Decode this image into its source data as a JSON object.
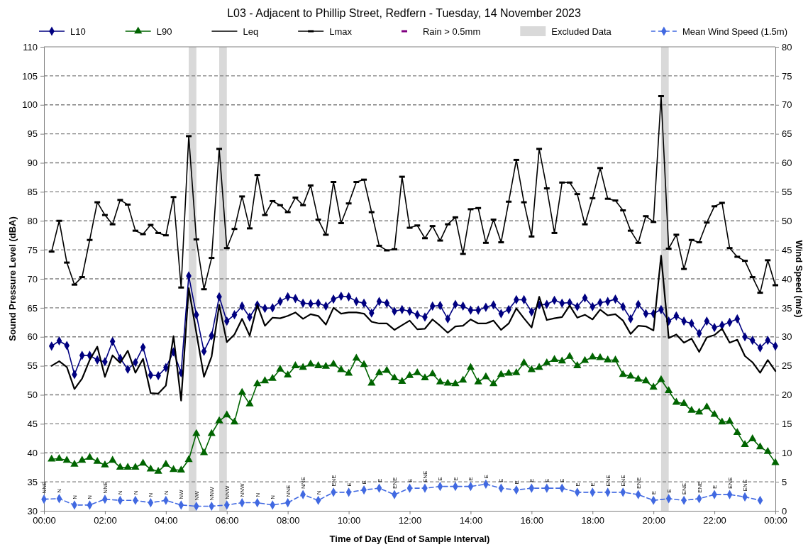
{
  "chart_data": {
    "type": "line",
    "title": "L03 - Adjacent to Phillip Street, Redfern - Tuesday, 14 November 2023",
    "xlabel": "Time of Day (End of Sample Interval)",
    "ylabel": "Sound Pressure Level (dBA)",
    "y2label": "Wind Speed (m/s)",
    "x": [
      0.25,
      0.5,
      0.75,
      1,
      1.25,
      1.5,
      1.75,
      2,
      2.25,
      2.5,
      2.75,
      3,
      3.25,
      3.5,
      3.75,
      4,
      4.25,
      4.5,
      4.75,
      5,
      5.25,
      5.5,
      5.75,
      6,
      6.25,
      6.5,
      6.75,
      7,
      7.25,
      7.5,
      7.75,
      8,
      8.25,
      8.5,
      8.75,
      9,
      9.25,
      9.5,
      9.75,
      10,
      10.25,
      10.5,
      10.75,
      11,
      11.25,
      11.5,
      11.75,
      12,
      12.25,
      12.5,
      12.75,
      13,
      13.25,
      13.5,
      13.75,
      14,
      14.25,
      14.5,
      14.75,
      15,
      15.25,
      15.5,
      15.75,
      16,
      16.25,
      16.5,
      16.75,
      17,
      17.25,
      17.5,
      17.75,
      18,
      18.25,
      18.5,
      18.75,
      19,
      19.25,
      19.5,
      19.75,
      20,
      20.25,
      20.5,
      20.75,
      21,
      21.25,
      21.5,
      21.75,
      22,
      22.25,
      22.5,
      22.75,
      23,
      23.25,
      23.5,
      23.75,
      24
    ],
    "xlim": [
      0,
      24
    ],
    "xticks": [
      {
        "value": 0,
        "label": "00:00"
      },
      {
        "value": 2,
        "label": "02:00"
      },
      {
        "value": 4,
        "label": "04:00"
      },
      {
        "value": 6,
        "label": "06:00"
      },
      {
        "value": 8,
        "label": "08:00"
      },
      {
        "value": 10,
        "label": "10:00"
      },
      {
        "value": 12,
        "label": "12:00"
      },
      {
        "value": 14,
        "label": "14:00"
      },
      {
        "value": 16,
        "label": "16:00"
      },
      {
        "value": 18,
        "label": "18:00"
      },
      {
        "value": 20,
        "label": "20:00"
      },
      {
        "value": 22,
        "label": "22:00"
      },
      {
        "value": 24,
        "label": "00:00"
      }
    ],
    "ylim": [
      30,
      110
    ],
    "yticks": [
      30,
      35,
      40,
      45,
      50,
      55,
      60,
      65,
      70,
      75,
      80,
      85,
      90,
      95,
      100,
      105,
      110
    ],
    "y2lim": [
      0,
      80
    ],
    "y2ticks": [
      0,
      5,
      10,
      15,
      20,
      25,
      30,
      35,
      40,
      45,
      50,
      55,
      60,
      65,
      70,
      75,
      80
    ],
    "grid": "y",
    "legend": "top",
    "series": [
      {
        "name": "L10",
        "color": "#000080",
        "marker": "diamond",
        "values": [
          58.4,
          59.3,
          58.5,
          53.5,
          56.8,
          56.8,
          56.0,
          55.7,
          59.2,
          56.3,
          54.4,
          55.6,
          58.2,
          53.4,
          53.3,
          54.7,
          57.4,
          53.8,
          70.5,
          63.8,
          57.5,
          60.2,
          66.9,
          62.7,
          63.8,
          65.3,
          63.4,
          65.5,
          64.9,
          65.0,
          66.1,
          66.9,
          66.6,
          65.8,
          65.7,
          65.8,
          65.3,
          66.5,
          67.0,
          66.9,
          66.1,
          65.8,
          64.1,
          66.1,
          65.8,
          64.4,
          64.7,
          64.4,
          63.8,
          63.4,
          65.3,
          65.4,
          63.1,
          65.6,
          65.3,
          64.6,
          64.6,
          65.1,
          65.5,
          64.0,
          64.7,
          66.4,
          66.4,
          64.3,
          65.5,
          65.6,
          66.3,
          65.8,
          65.9,
          65.2,
          66.7,
          65.2,
          65.9,
          66.1,
          66.5,
          65.2,
          63.1,
          65.6,
          64.0,
          64.0,
          64.7,
          62.7,
          63.6,
          62.7,
          62.3,
          60.6,
          62.7,
          61.6,
          62.0,
          62.5,
          63.1,
          60.0,
          59.4,
          58.1,
          59.4,
          58.4
        ]
      },
      {
        "name": "L90",
        "color": "#006400",
        "marker": "triangle",
        "values": [
          38.9,
          39.0,
          38.7,
          38.0,
          38.7,
          39.2,
          38.5,
          37.9,
          38.7,
          37.5,
          37.5,
          37.5,
          38.2,
          37.2,
          36.8,
          38.0,
          37.1,
          37.0,
          38.8,
          43.3,
          40.0,
          43.3,
          45.5,
          46.5,
          45.3,
          50.4,
          48.4,
          51.9,
          52.4,
          52.8,
          54.4,
          53.4,
          55.0,
          54.7,
          55.3,
          55.0,
          54.9,
          55.3,
          54.3,
          53.7,
          56.3,
          55.2,
          52.0,
          53.8,
          54.2,
          52.9,
          52.3,
          53.3,
          53.8,
          52.9,
          53.6,
          52.2,
          52.0,
          51.9,
          52.5,
          54.7,
          52.2,
          53.1,
          51.9,
          53.5,
          53.7,
          53.8,
          55.5,
          54.3,
          54.7,
          55.5,
          56.1,
          55.8,
          56.6,
          55.0,
          55.9,
          56.5,
          56.4,
          56.0,
          56.0,
          53.5,
          53.2,
          52.7,
          52.4,
          51.3,
          52.6,
          50.7,
          48.7,
          48.5,
          47.3,
          47.0,
          47.9,
          46.6,
          45.3,
          45.4,
          43.5,
          41.4,
          42.4,
          41.0,
          40.2,
          38.3
        ]
      },
      {
        "name": "Leq",
        "color": "#000000",
        "marker": "none",
        "values": [
          55.0,
          55.8,
          54.8,
          51.0,
          52.8,
          56.0,
          58.3,
          53.1,
          56.8,
          55.5,
          57.6,
          53.8,
          56.2,
          50.3,
          50.2,
          51.6,
          60.1,
          49.0,
          68.4,
          60.7,
          53.1,
          56.6,
          65.5,
          59.1,
          60.4,
          63.1,
          60.2,
          65.5,
          61.9,
          63.3,
          63.2,
          63.6,
          64.2,
          63.1,
          63.9,
          63.6,
          62.1,
          65.0,
          64.0,
          64.2,
          64.2,
          64.0,
          62.6,
          62.3,
          62.3,
          61.2,
          62.0,
          62.8,
          61.3,
          61.4,
          63.0,
          61.9,
          60.7,
          61.8,
          61.9,
          63.0,
          62.3,
          62.3,
          62.8,
          61.2,
          62.3,
          64.9,
          63.2,
          61.6,
          66.9,
          62.9,
          63.2,
          63.4,
          65.4,
          63.3,
          63.8,
          63.0,
          64.7,
          63.7,
          63.9,
          62.8,
          60.5,
          61.9,
          61.8,
          61.1,
          74.0,
          59.8,
          60.4,
          59.0,
          59.7,
          57.4,
          59.9,
          60.3,
          61.4,
          59.0,
          59.5,
          56.7,
          55.6,
          53.8,
          56.0,
          54.1
        ]
      },
      {
        "name": "Lmax",
        "color": "#000000",
        "marker": "square",
        "values": [
          74.7,
          80.0,
          72.8,
          69.0,
          70.3,
          76.7,
          83.2,
          81.0,
          79.4,
          83.6,
          82.8,
          78.3,
          77.7,
          79.3,
          77.9,
          77.5,
          84.1,
          68.5,
          94.6,
          76.8,
          68.2,
          73.6,
          92.4,
          75.3,
          78.6,
          84.2,
          78.7,
          87.9,
          81.0,
          83.4,
          82.7,
          81.5,
          84.0,
          82.7,
          86.1,
          80.2,
          77.6,
          86.7,
          79.6,
          83.0,
          86.7,
          87.1,
          81.5,
          75.7,
          74.9,
          75.1,
          87.6,
          78.8,
          79.2,
          77.0,
          79.1,
          76.6,
          79.4,
          80.6,
          74.3,
          82.0,
          82.2,
          76.2,
          80.2,
          76.3,
          83.3,
          90.5,
          83.2,
          77.3,
          92.4,
          85.6,
          77.9,
          86.6,
          86.6,
          84.6,
          79.4,
          83.9,
          89.1,
          83.8,
          83.5,
          81.8,
          78.3,
          76.2,
          80.8,
          79.8,
          101.5,
          75.2,
          77.6,
          71.7,
          76.7,
          76.3,
          79.7,
          82.5,
          83.1,
          75.3,
          73.8,
          73.1,
          70.3,
          67.6,
          73.2,
          68.9
        ]
      },
      {
        "name": "Rain > 0.5mm",
        "type": "scatter",
        "color": "#800080",
        "marker": "square",
        "values": [
          null,
          null,
          null,
          null,
          null,
          null,
          null,
          null,
          null,
          null,
          null,
          null,
          null,
          null,
          null,
          null,
          null,
          null,
          null,
          null,
          null,
          null,
          null,
          null,
          null,
          null,
          null,
          null,
          null,
          null,
          null,
          null,
          null,
          null,
          null,
          null,
          null,
          null,
          null,
          null,
          null,
          null,
          null,
          null,
          null,
          null,
          null,
          null,
          null,
          null,
          null,
          null,
          null,
          null,
          null,
          null,
          null,
          null,
          null,
          null,
          null,
          null,
          null,
          null,
          null,
          null,
          null,
          null,
          null,
          null,
          null,
          null,
          null,
          null,
          null,
          null,
          null,
          null,
          null,
          null,
          null,
          null,
          null,
          null,
          null,
          null,
          null,
          null,
          null,
          null,
          null,
          null,
          null,
          null,
          null,
          null
        ]
      },
      {
        "name": "Mean Wind Speed (1.5m)",
        "axis": "y2",
        "color": "#4169e1",
        "marker": "diamond",
        "line_style": "dashed",
        "x": [
          0,
          0.5,
          1,
          1.5,
          2,
          2.5,
          3,
          3.5,
          4,
          4.5,
          5,
          5.5,
          6,
          6.5,
          7,
          7.5,
          8,
          8.5,
          9,
          9.5,
          10,
          10.5,
          11,
          11.5,
          12,
          12.5,
          13,
          13.5,
          14,
          14.5,
          15,
          15.5,
          16,
          16.5,
          17,
          17.5,
          18,
          18.5,
          19,
          19.5,
          20,
          20.5,
          21,
          21.5,
          22,
          22.5,
          23,
          23.5
        ],
        "values": [
          2.0,
          2.1,
          1.0,
          1.0,
          2.0,
          1.8,
          1.8,
          1.4,
          1.8,
          1.0,
          0.8,
          0.8,
          1.0,
          1.4,
          1.4,
          1.0,
          1.4,
          2.8,
          1.8,
          3.2,
          3.2,
          3.6,
          3.9,
          2.8,
          3.9,
          3.9,
          4.2,
          4.2,
          4.2,
          4.6,
          3.9,
          3.6,
          3.9,
          3.9,
          3.9,
          3.2,
          3.2,
          3.2,
          3.2,
          2.8,
          1.8,
          2.1,
          1.8,
          2.1,
          2.8,
          2.8,
          2.4,
          1.8
        ]
      }
    ],
    "bands": [
      {
        "axis": "x",
        "from": 4.75,
        "to": 5,
        "label": "Excluded Data",
        "color": "#d9d9d9"
      },
      {
        "axis": "x",
        "from": 5.75,
        "to": 6,
        "color": "#d9d9d9"
      },
      {
        "axis": "x",
        "from": 20.25,
        "to": 20.5,
        "color": "#d9d9d9"
      }
    ],
    "annotations": [
      "NNE",
      "N",
      "N",
      "N",
      "NNE",
      "N",
      "N",
      "N",
      "N",
      "NW",
      "NW",
      "NNW",
      "NNW",
      "NNW",
      "N",
      "N",
      "NNE",
      "NNE",
      "N",
      "ENE",
      "E",
      "E",
      "E",
      "ENE",
      "E",
      "ENE",
      "E",
      "E",
      "E",
      "E",
      "E",
      "E",
      "E",
      "E",
      "E",
      "E",
      "E",
      "ENE",
      "ENE",
      "ENE",
      "E",
      "E",
      "ENE",
      "ENE",
      "E",
      "ENE",
      "ENE"
    ]
  }
}
